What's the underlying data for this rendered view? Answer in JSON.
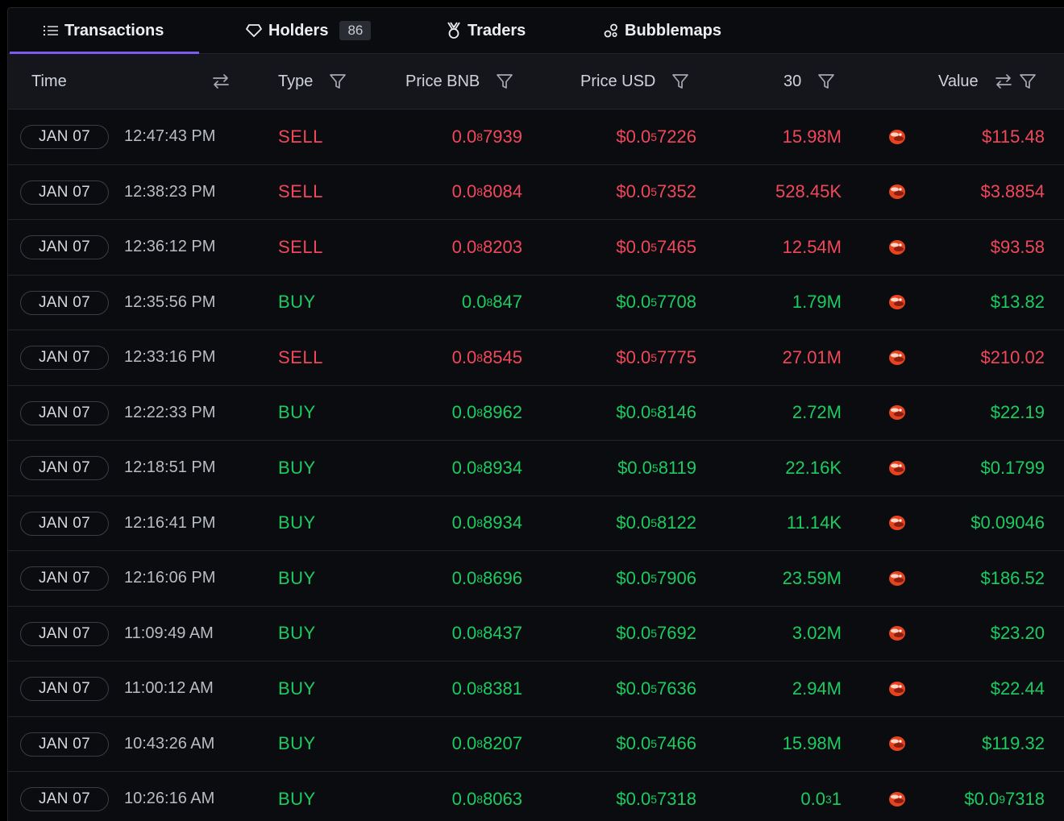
{
  "tabs": [
    {
      "label": "Transactions",
      "icon": "list-icon",
      "active": true
    },
    {
      "label": "Holders",
      "icon": "diamond-icon",
      "badge": "86"
    },
    {
      "label": "Traders",
      "icon": "medal-icon"
    },
    {
      "label": "Bubblemaps",
      "icon": "bubbles-icon"
    }
  ],
  "columns": {
    "time": "Time",
    "type": "Type",
    "price_bnb": "Price BNB",
    "price_usd": "Price USD",
    "amount": "30",
    "value": "Value"
  },
  "colors": {
    "buy": "#1ecb61",
    "sell": "#f0485a",
    "accent": "#7c5cf0"
  },
  "rows": [
    {
      "date": "JAN 07",
      "time": "12:47:43 PM",
      "type": "SELL",
      "bnb": {
        "lead": "0.0",
        "zeros": "8",
        "tail": "7939"
      },
      "usd": {
        "lead": "$0.0",
        "zeros": "5",
        "tail": "7226"
      },
      "amount": "15.98M",
      "value": "$115.48"
    },
    {
      "date": "JAN 07",
      "time": "12:38:23 PM",
      "type": "SELL",
      "bnb": {
        "lead": "0.0",
        "zeros": "8",
        "tail": "8084"
      },
      "usd": {
        "lead": "$0.0",
        "zeros": "5",
        "tail": "7352"
      },
      "amount": "528.45K",
      "value": "$3.8854"
    },
    {
      "date": "JAN 07",
      "time": "12:36:12 PM",
      "type": "SELL",
      "bnb": {
        "lead": "0.0",
        "zeros": "8",
        "tail": "8203"
      },
      "usd": {
        "lead": "$0.0",
        "zeros": "5",
        "tail": "7465"
      },
      "amount": "12.54M",
      "value": "$93.58"
    },
    {
      "date": "JAN 07",
      "time": "12:35:56 PM",
      "type": "BUY",
      "bnb": {
        "lead": "0.0",
        "zeros": "8",
        "tail": "847"
      },
      "usd": {
        "lead": "$0.0",
        "zeros": "5",
        "tail": "7708"
      },
      "amount": "1.79M",
      "value": "$13.82"
    },
    {
      "date": "JAN 07",
      "time": "12:33:16 PM",
      "type": "SELL",
      "bnb": {
        "lead": "0.0",
        "zeros": "8",
        "tail": "8545"
      },
      "usd": {
        "lead": "$0.0",
        "zeros": "5",
        "tail": "7775"
      },
      "amount": "27.01M",
      "value": "$210.02"
    },
    {
      "date": "JAN 07",
      "time": "12:22:33 PM",
      "type": "BUY",
      "bnb": {
        "lead": "0.0",
        "zeros": "8",
        "tail": "8962"
      },
      "usd": {
        "lead": "$0.0",
        "zeros": "5",
        "tail": "8146"
      },
      "amount": "2.72M",
      "value": "$22.19"
    },
    {
      "date": "JAN 07",
      "time": "12:18:51 PM",
      "type": "BUY",
      "bnb": {
        "lead": "0.0",
        "zeros": "8",
        "tail": "8934"
      },
      "usd": {
        "lead": "$0.0",
        "zeros": "5",
        "tail": "8119"
      },
      "amount": "22.16K",
      "value": "$0.1799"
    },
    {
      "date": "JAN 07",
      "time": "12:16:41 PM",
      "type": "BUY",
      "bnb": {
        "lead": "0.0",
        "zeros": "8",
        "tail": "8934"
      },
      "usd": {
        "lead": "$0.0",
        "zeros": "5",
        "tail": "8122"
      },
      "amount": "11.14K",
      "value": "$0.09046"
    },
    {
      "date": "JAN 07",
      "time": "12:16:06 PM",
      "type": "BUY",
      "bnb": {
        "lead": "0.0",
        "zeros": "8",
        "tail": "8696"
      },
      "usd": {
        "lead": "$0.0",
        "zeros": "5",
        "tail": "7906"
      },
      "amount": "23.59M",
      "value": "$186.52"
    },
    {
      "date": "JAN 07",
      "time": "11:09:49 AM",
      "type": "BUY",
      "bnb": {
        "lead": "0.0",
        "zeros": "8",
        "tail": "8437"
      },
      "usd": {
        "lead": "$0.0",
        "zeros": "5",
        "tail": "7692"
      },
      "amount": "3.02M",
      "value": "$23.20"
    },
    {
      "date": "JAN 07",
      "time": "11:00:12 AM",
      "type": "BUY",
      "bnb": {
        "lead": "0.0",
        "zeros": "8",
        "tail": "8381"
      },
      "usd": {
        "lead": "$0.0",
        "zeros": "5",
        "tail": "7636"
      },
      "amount": "2.94M",
      "value": "$22.44"
    },
    {
      "date": "JAN 07",
      "time": "10:43:26 AM",
      "type": "BUY",
      "bnb": {
        "lead": "0.0",
        "zeros": "8",
        "tail": "8207"
      },
      "usd": {
        "lead": "$0.0",
        "zeros": "5",
        "tail": "7466"
      },
      "amount": "15.98M",
      "value": "$119.32"
    },
    {
      "date": "JAN 07",
      "time": "10:26:16 AM",
      "type": "BUY",
      "bnb": {
        "lead": "0.0",
        "zeros": "8",
        "tail": "8063"
      },
      "usd": {
        "lead": "$0.0",
        "zeros": "5",
        "tail": "7318"
      },
      "amount": {
        "lead": "0.0",
        "zeros": "3",
        "tail": "1"
      },
      "value": {
        "lead": "$0.0",
        "zeros": "9",
        "tail": "7318"
      }
    }
  ]
}
